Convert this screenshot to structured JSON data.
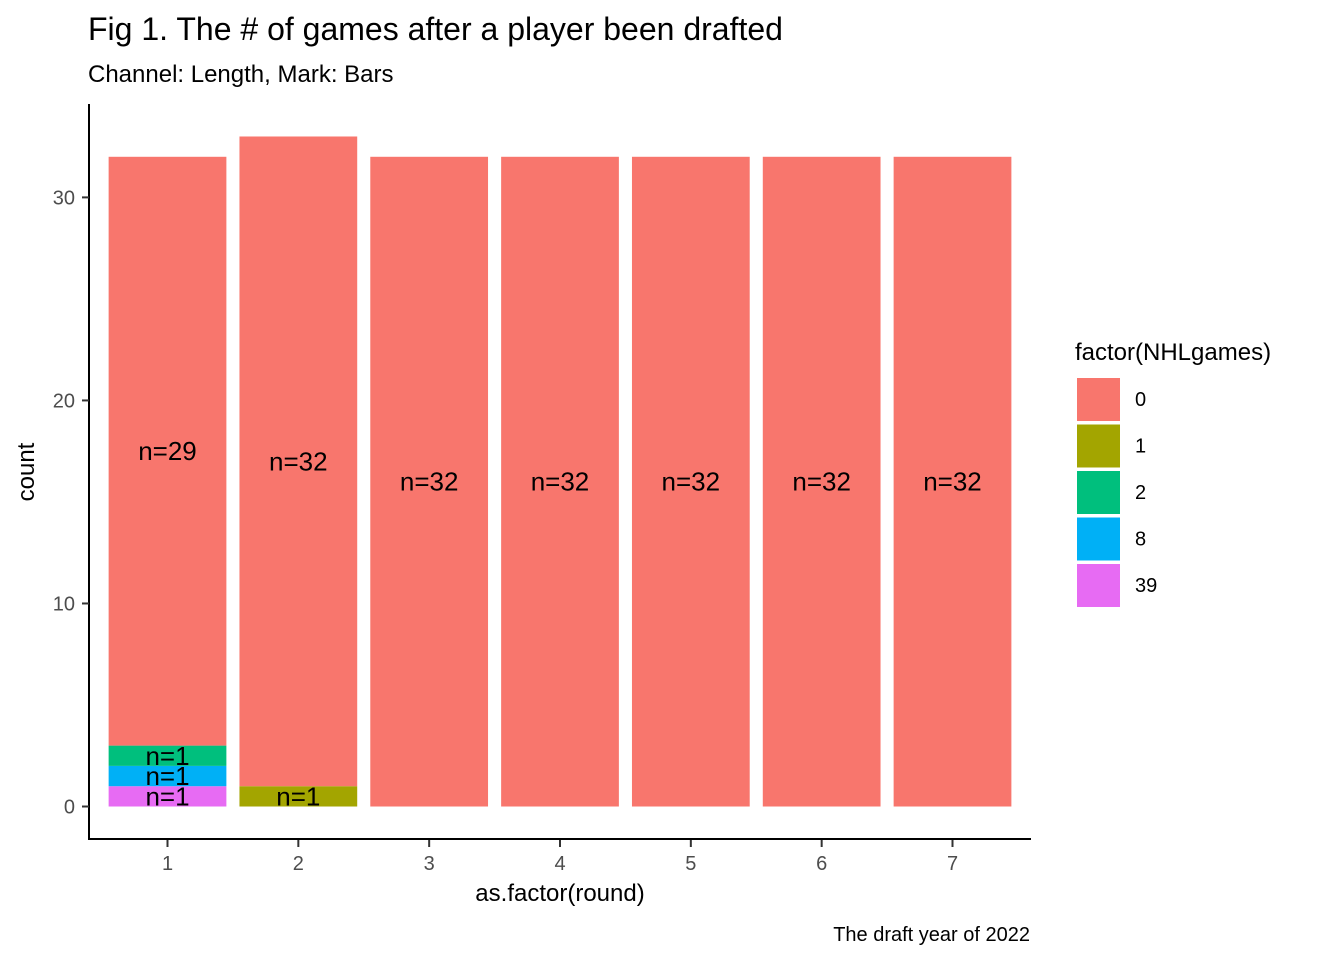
{
  "chart_data": {
    "type": "bar",
    "stacked": true,
    "title": "Fig 1. The # of games after a player been drafted",
    "subtitle": "Channel: Length, Mark: Bars",
    "caption": "The draft year of 2022",
    "xlabel": "as.factor(round)",
    "ylabel": "count",
    "categories": [
      "1",
      "2",
      "3",
      "4",
      "5",
      "6",
      "7"
    ],
    "ylim": [
      -1.6,
      34.6
    ],
    "yticks": [
      0,
      10,
      20,
      30
    ],
    "grid": false,
    "legend": {
      "title": "factor(NHLgames)",
      "position": "right"
    },
    "series": [
      {
        "name": "0",
        "color": "#F8766D",
        "values": [
          29,
          32,
          32,
          32,
          32,
          32,
          32
        ]
      },
      {
        "name": "1",
        "color": "#A3A500",
        "values": [
          0,
          1,
          0,
          0,
          0,
          0,
          0
        ]
      },
      {
        "name": "2",
        "color": "#00BF7D",
        "values": [
          1,
          0,
          0,
          0,
          0,
          0,
          0
        ]
      },
      {
        "name": "8",
        "color": "#00B0F6",
        "values": [
          1,
          0,
          0,
          0,
          0,
          0,
          0
        ]
      },
      {
        "name": "39",
        "color": "#E76BF3",
        "values": [
          1,
          0,
          0,
          0,
          0,
          0,
          0
        ]
      }
    ],
    "bar_labels": [
      [
        "n=29",
        "",
        "n=1",
        "n=1",
        "n=1"
      ],
      [
        "n=32",
        "n=1",
        "",
        "",
        ""
      ],
      [
        "n=32",
        "",
        "",
        "",
        ""
      ],
      [
        "n=32",
        "",
        "",
        "",
        ""
      ],
      [
        "n=32",
        "",
        "",
        "",
        ""
      ],
      [
        "n=32",
        "",
        "",
        "",
        ""
      ],
      [
        "n=32",
        "",
        "",
        "",
        ""
      ]
    ]
  }
}
